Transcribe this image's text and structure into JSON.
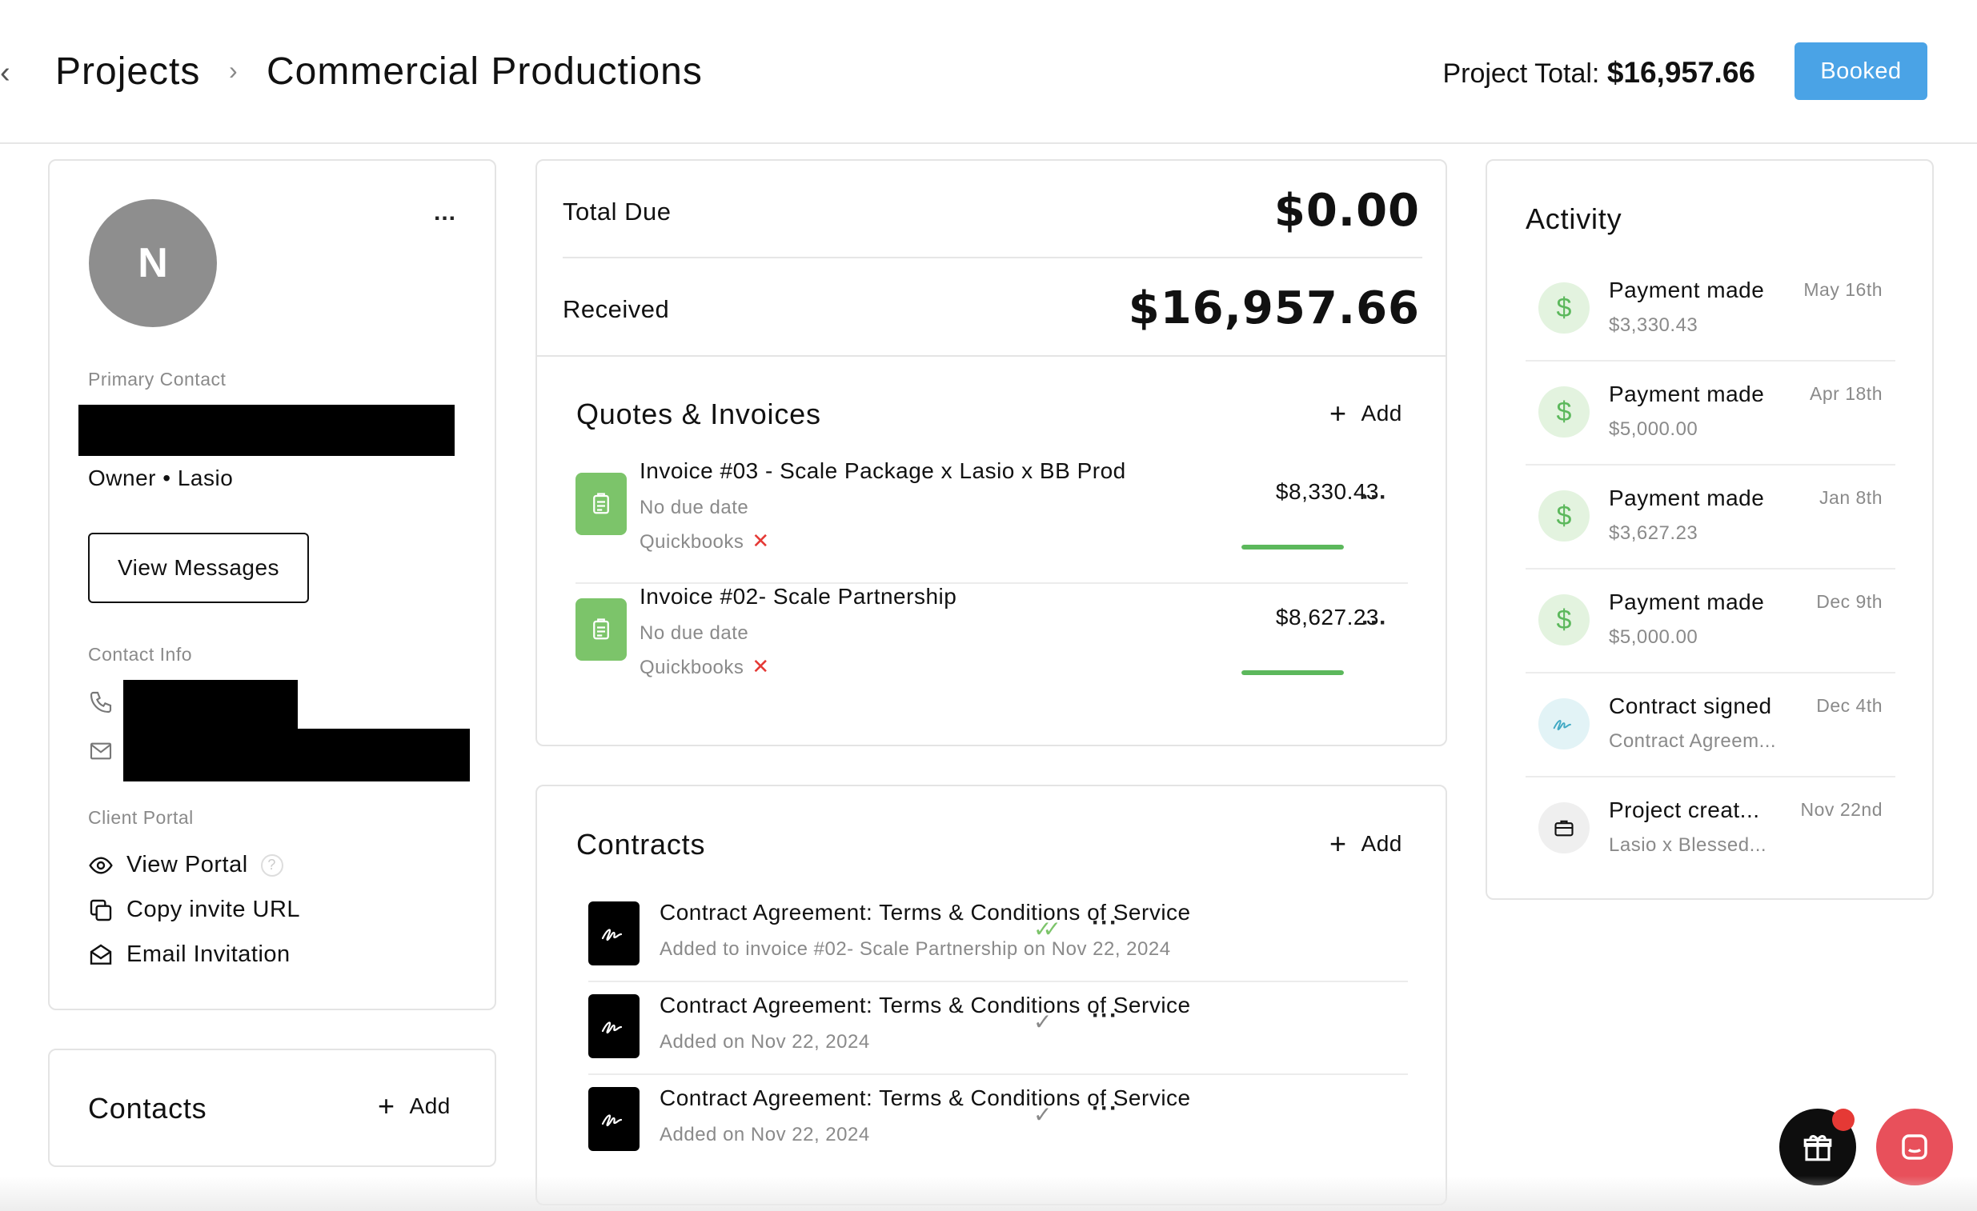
{
  "header": {
    "breadcrumb_root": "Projects",
    "breadcrumb_current": "Commercial Productions",
    "project_total_label": "Project Total:",
    "project_total_value": "$16,957.66",
    "status_button": "Booked"
  },
  "client_card": {
    "avatar_initial": "N",
    "more_label": "...",
    "primary_contact_label": "Primary Contact",
    "role_line": "Owner • Lasio",
    "view_messages": "View Messages",
    "contact_info_label": "Contact Info",
    "client_portal_label": "Client Portal",
    "portal_actions": [
      "View Portal",
      "Copy invite URL",
      "Email Invitation"
    ],
    "help_glyph": "?"
  },
  "contacts_card": {
    "title": "Contacts",
    "add_label": "Add"
  },
  "balance": {
    "total_due_label": "Total Due",
    "total_due_value": "$0.00",
    "received_label": "Received",
    "received_value": "$16,957.66"
  },
  "quotes": {
    "title": "Quotes & Invoices",
    "add_label": "Add",
    "items": [
      {
        "title": "Invoice #03 - Scale Package x Lasio x BB Prod",
        "due": "No due date",
        "sync": "Quickbooks",
        "amount": "$8,330.43",
        "paid_fraction": 1.0
      },
      {
        "title": "Invoice #02- Scale Partnership",
        "due": "No due date",
        "sync": "Quickbooks",
        "amount": "$8,627.23",
        "paid_fraction": 1.0
      }
    ]
  },
  "contracts": {
    "title": "Contracts",
    "add_label": "Add",
    "items": [
      {
        "title": "Contract Agreement: Terms & Conditions of Service",
        "sub": "Added to invoice #02- Scale Partnership on Nov 22, 2024",
        "status": "signed"
      },
      {
        "title": "Contract Agreement: Terms & Conditions of Service",
        "sub": "Added on Nov 22, 2024",
        "status": "sent"
      },
      {
        "title": "Contract Agreement: Terms & Conditions of Service",
        "sub": "Added on Nov 22, 2024",
        "status": "sent"
      }
    ]
  },
  "activity": {
    "title": "Activity",
    "items": [
      {
        "title": "Payment made",
        "sub": "$3,330.43",
        "date": "May 16th",
        "icon": "dollar-icon"
      },
      {
        "title": "Payment made",
        "sub": "$5,000.00",
        "date": "Apr 18th",
        "icon": "dollar-icon"
      },
      {
        "title": "Payment made",
        "sub": "$3,627.23",
        "date": "Jan 8th",
        "icon": "dollar-icon"
      },
      {
        "title": "Payment made",
        "sub": "$5,000.00",
        "date": "Dec 9th",
        "icon": "dollar-icon"
      },
      {
        "title": "Contract signed",
        "sub": "Contract Agreem...",
        "date": "Dec 4th",
        "icon": "signature-icon"
      },
      {
        "title": "Project creat...",
        "sub": "Lasio x Blessed...",
        "date": "Nov 22nd",
        "icon": "briefcase-icon"
      }
    ]
  },
  "colors": {
    "accent_blue": "#4aa3e6",
    "invoice_green": "#7cc46a",
    "danger_red": "#e53935",
    "chat_fab": "#e8505b"
  }
}
